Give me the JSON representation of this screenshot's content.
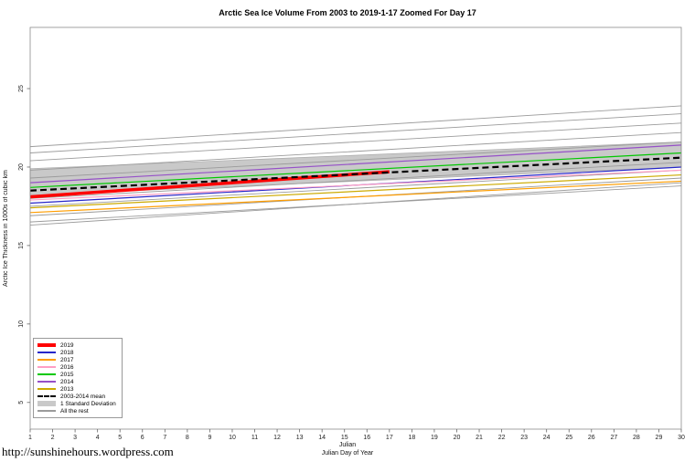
{
  "page": {
    "footer_url": "http://sunshinehours.wordpress.com"
  },
  "chart_data": {
    "type": "line",
    "title": "Arctic Sea Ice Volume From 2003 to 2019-1-17 Zoomed For Day 17",
    "xlabel_line1": "Julian",
    "xlabel": "Julian Day of Year",
    "ylabel": "Arctic Ice Thickness in 1000s of cubic km",
    "xlim": [
      1,
      30
    ],
    "ylim": [
      3.3,
      28.9
    ],
    "xticks": [
      1,
      2,
      3,
      4,
      5,
      6,
      7,
      8,
      9,
      10,
      11,
      12,
      13,
      14,
      15,
      16,
      17,
      18,
      19,
      20,
      21,
      22,
      23,
      24,
      25,
      26,
      27,
      28,
      29,
      30
    ],
    "yticks": [
      5,
      10,
      15,
      20,
      25
    ],
    "grid": false,
    "legend_position": "bottom-left",
    "series": [
      {
        "name": "2019",
        "color": "#ff0000",
        "width": 3.5,
        "x": [
          1,
          17
        ],
        "values": [
          18.1,
          19.7
        ]
      },
      {
        "name": "2018",
        "color": "#2626c9",
        "width": 1.2,
        "x": [
          1,
          30
        ],
        "values": [
          17.7,
          20.0
        ]
      },
      {
        "name": "2017",
        "color": "#ff9d00",
        "width": 1.2,
        "x": [
          1,
          30
        ],
        "values": [
          17.1,
          19.1
        ]
      },
      {
        "name": "2016",
        "color": "#ff9ec4",
        "width": 1.2,
        "x": [
          1,
          30
        ],
        "values": [
          17.9,
          19.8
        ]
      },
      {
        "name": "2015",
        "color": "#00c800",
        "width": 1.2,
        "x": [
          1,
          30
        ],
        "values": [
          18.7,
          20.9
        ]
      },
      {
        "name": "2014",
        "color": "#9650c8",
        "width": 1.2,
        "x": [
          1,
          30
        ],
        "values": [
          19.0,
          21.4
        ]
      },
      {
        "name": "2013",
        "color": "#ccaa00",
        "width": 1.2,
        "x": [
          1,
          30
        ],
        "values": [
          17.4,
          19.5
        ]
      }
    ],
    "mean": {
      "name": "2003-2014 mean",
      "color": "#000000",
      "width": 2.2,
      "dash": "7,4",
      "x": [
        1,
        30
      ],
      "values": [
        18.5,
        20.6
      ]
    },
    "band": {
      "name": "1 Standard Deviation",
      "color": "#c9c9c9",
      "x": [
        1,
        30
      ],
      "lower": [
        18.2,
        20.0
      ],
      "upper": [
        19.9,
        21.6
      ]
    },
    "all_the_rest": {
      "name": "All the rest",
      "color": "#9b9b9b",
      "width": 0.9,
      "lines": [
        [
          21.3,
          23.9
        ],
        [
          20.9,
          23.4
        ],
        [
          20.4,
          22.8
        ],
        [
          19.8,
          22.2
        ],
        [
          19.3,
          21.6
        ],
        [
          18.0,
          20.3
        ],
        [
          17.5,
          19.8
        ],
        [
          16.9,
          19.3
        ],
        [
          16.5,
          18.8
        ],
        [
          16.3,
          19.0
        ]
      ]
    }
  },
  "legend": {
    "items": [
      {
        "label": "2019",
        "color": "#ff0000",
        "style": "thick"
      },
      {
        "label": "2018",
        "color": "#2626c9",
        "style": "line"
      },
      {
        "label": "2017",
        "color": "#ff9d00",
        "style": "line"
      },
      {
        "label": "2016",
        "color": "#ff9ec4",
        "style": "line"
      },
      {
        "label": "2015",
        "color": "#00c800",
        "style": "line"
      },
      {
        "label": "2014",
        "color": "#9650c8",
        "style": "line"
      },
      {
        "label": "2013",
        "color": "#ccaa00",
        "style": "line"
      },
      {
        "label": "2003-2014 mean",
        "color": "#000000",
        "style": "dashed"
      },
      {
        "label": "1 Standard Deviation",
        "color": "#c9c9c9",
        "style": "band"
      },
      {
        "label": "All the rest",
        "color": "#9b9b9b",
        "style": "line"
      }
    ]
  }
}
